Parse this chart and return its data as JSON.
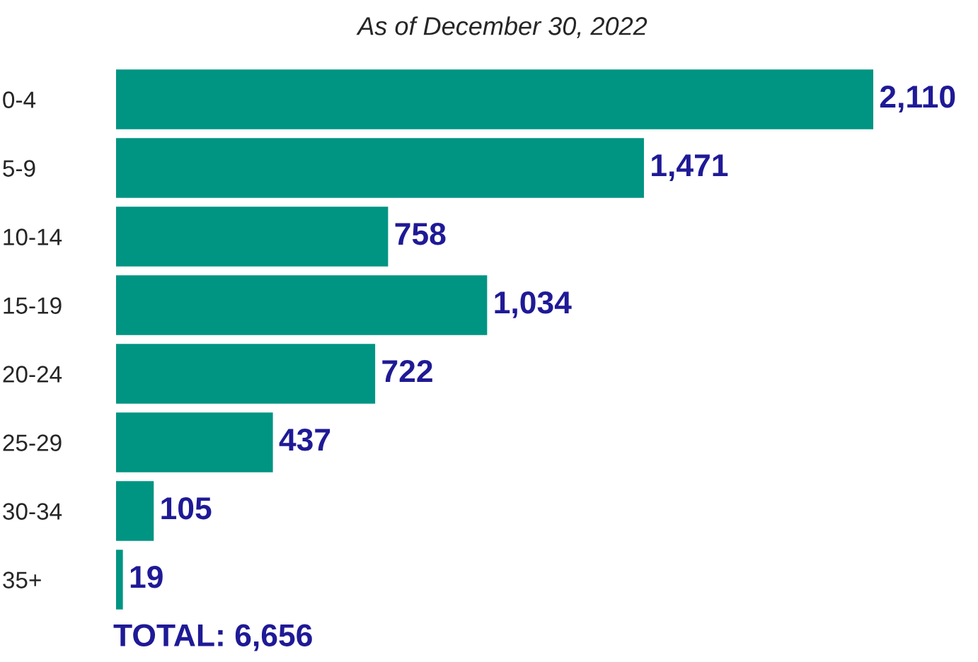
{
  "chart_data": {
    "type": "bar",
    "orientation": "horizontal",
    "title": "As of December 30, 2022",
    "categories": [
      "0-4",
      "5-9",
      "10-14",
      "15-19",
      "20-24",
      "25-29",
      "30-34",
      "35+"
    ],
    "values": [
      2110,
      1471,
      758,
      1034,
      722,
      437,
      105,
      19
    ],
    "color": "#009483",
    "value_labels": [
      "2,110",
      "1,471",
      "758",
      "1,034",
      "722",
      "437",
      "105",
      "19"
    ],
    "annotations": [
      "TOTAL: 6,656"
    ]
  }
}
